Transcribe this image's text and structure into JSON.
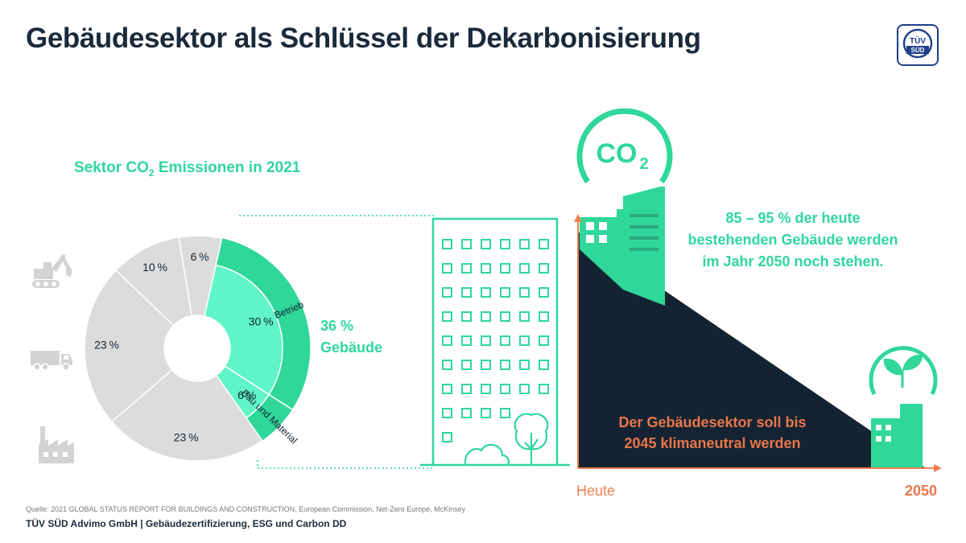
{
  "header": {
    "title": "Gebäudesektor als Schlüssel der Dekarbonisierung",
    "logo_text_top": "TÜV",
    "logo_text_bottom": "SÜD"
  },
  "chart_data": [
    {
      "type": "pie",
      "title": "Sektor CO2 Emissionen in 2021",
      "title_parts": {
        "main": "Sektor CO",
        "sub": "2",
        "rest": " Emissionen in 2021"
      },
      "slices": [
        {
          "name": "Betrieb",
          "value": 30,
          "label": "30 %",
          "group": "Gebäude"
        },
        {
          "name": "Bau und Material",
          "value": 6,
          "label": "6 %",
          "group": "Gebäude"
        },
        {
          "name": "",
          "value": 23,
          "label": "23 %",
          "group": ""
        },
        {
          "name": "",
          "value": 23,
          "label": "23 %",
          "group": ""
        },
        {
          "name": "",
          "value": 10,
          "label": "10 %",
          "group": ""
        },
        {
          "name": "",
          "value": 6,
          "label": "6 %",
          "group": ""
        }
      ],
      "group_label": {
        "value": "36 %",
        "name": "Gebäude"
      },
      "sector_icons": [
        "excavator-icon",
        "truck-icon",
        "factory-icon"
      ]
    }
  ],
  "co2_badge": {
    "main": "CO",
    "sub": "2"
  },
  "slogan": {
    "line1": "85 – 95 % der heute",
    "line2": "bestehenden Gebäude werden",
    "line3": "im Jahr 2050 noch stehen."
  },
  "reduction_chart": {
    "text_line1": "Der Gebäudesektor soll bis",
    "text_line2": "2045 klimaneutral werden",
    "x_start": "Heute",
    "x_end": "2050"
  },
  "footer": {
    "source": "Quelle: 2021 GLOBAL STATUS REPORT FOR BUILDINGS AND CONSTRUCTION, European Commission, Net-Zero Europe, McKinsey",
    "company": "TÜV SÜD Advimo GmbH | Gebäudezertifizierung, ESG und Carbon DD"
  },
  "colors": {
    "accent": "#2fd79a",
    "accent_light": "#5ff5c6",
    "grey": "#dcdcdc",
    "navy": "#142331",
    "orange": "#e8774a"
  }
}
